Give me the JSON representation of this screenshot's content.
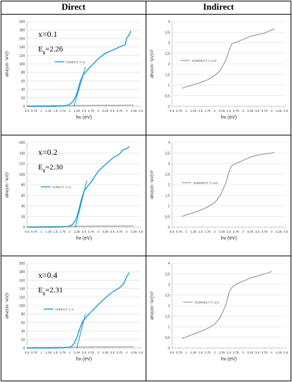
{
  "headers": {
    "left": "Direct",
    "right": "Indirect"
  },
  "rows": [
    {
      "x_label": "x=0.1",
      "eg_prefix": "E",
      "eg_sub": "g",
      "eg_value": "=2.26"
    },
    {
      "x_label": "x=0.2",
      "eg_prefix": "E",
      "eg_sub": "g",
      "eg_value": "=2.30"
    },
    {
      "x_label": "x=0.4",
      "eg_prefix": "E",
      "eg_sub": "g",
      "eg_value": "=2.31"
    }
  ],
  "colors": {
    "direct": "#1a9bd7",
    "indirect": "#a6a6a6",
    "baseline": "#7f7f7f",
    "grid": "#d9d9d9"
  },
  "chart_data": [
    {
      "type": "line",
      "panel": "direct-1",
      "xlabel": "hv (eV)",
      "ylabel": "αhv(cm⁻¹eV)²",
      "legend": "DIRECT Y=2",
      "xlim": [
        0.5,
        4.5
      ],
      "ylim": [
        0,
        200
      ],
      "x_ticks": [
        "0,5",
        "0,75",
        "1",
        "1,25",
        "1,5",
        "1,75",
        "2",
        "2,25",
        "2,5",
        "2,75",
        "3",
        "3,25",
        "3,5",
        "3,75",
        "4",
        "4,25",
        "4,5"
      ],
      "y_ticks": [
        "0",
        "20",
        "40",
        "60",
        "80",
        "100",
        "120",
        "140",
        "160",
        "180",
        "200"
      ],
      "series": [
        {
          "x": [
            0.5,
            1.0,
            1.5,
            1.8,
            1.95,
            2.05,
            2.15,
            2.25,
            2.35,
            2.45,
            2.55,
            2.75,
            3.0,
            3.25,
            3.5,
            3.75,
            3.95,
            4.0,
            4.1,
            4.15
          ],
          "y": [
            0,
            0,
            0,
            1,
            3,
            7,
            15,
            30,
            55,
            72,
            80,
            95,
            112,
            125,
            132,
            140,
            145,
            160,
            170,
            178
          ]
        }
      ],
      "fit_line": {
        "x": [
          2.15,
          2.55
        ],
        "y": [
          0,
          92
        ]
      }
    },
    {
      "type": "line",
      "panel": "indirect-1",
      "xlabel": "hv (eV)",
      "ylabel": "αhv(cm⁻¹eV)¹/²",
      "legend": "INDIRECT Y=1/2",
      "xlim": [
        0.5,
        4.5
      ],
      "ylim": [
        0,
        4
      ],
      "x_ticks": [
        "0,5",
        "0,75",
        "1",
        "1,25",
        "1,5",
        "1,75",
        "2",
        "2,25",
        "2,5",
        "2,75",
        "3",
        "3,25",
        "3,5",
        "3,75",
        "4",
        "4,25",
        "4,5"
      ],
      "y_ticks": [
        "0",
        "0,5",
        "1",
        "1,5",
        "2",
        "2,5",
        "3",
        "3,5",
        "4"
      ],
      "series": [
        {
          "x": [
            0.85,
            1.0,
            1.25,
            1.5,
            1.75,
            2.0,
            2.2,
            2.4,
            2.5,
            2.6,
            2.7,
            2.8,
            3.0,
            3.25,
            3.5,
            3.75,
            4.0,
            4.1
          ],
          "y": [
            0.85,
            0.92,
            1.02,
            1.12,
            1.25,
            1.45,
            1.7,
            2.2,
            2.6,
            2.95,
            3.0,
            3.05,
            3.15,
            3.3,
            3.38,
            3.45,
            3.6,
            3.65
          ]
        }
      ]
    },
    {
      "type": "line",
      "panel": "direct-2",
      "xlabel": "hv (eV)",
      "ylabel": "αhv(cm⁻¹eV)²",
      "legend": "DIRECT Y=2",
      "xlim": [
        0.5,
        4.5
      ],
      "ylim": [
        0,
        160
      ],
      "x_ticks": [
        "0,5",
        "0,75",
        "1",
        "1,25",
        "1,5",
        "1,75",
        "2",
        "2,25",
        "2,5",
        "2,75",
        "3",
        "3,25",
        "3,5",
        "3,75",
        "4",
        "4,25",
        "4,5"
      ],
      "y_ticks": [
        "0",
        "20",
        "40",
        "60",
        "80",
        "100",
        "120",
        "140",
        "160"
      ],
      "series": [
        {
          "x": [
            0.5,
            1.0,
            1.5,
            1.9,
            2.0,
            2.1,
            2.2,
            2.3,
            2.4,
            2.5,
            2.6,
            2.75,
            3.0,
            3.25,
            3.5,
            3.75,
            3.85,
            4.0,
            4.1
          ],
          "y": [
            0,
            0,
            0,
            1,
            2,
            5,
            12,
            28,
            50,
            68,
            75,
            85,
            105,
            118,
            130,
            138,
            145,
            148,
            152
          ]
        }
      ],
      "fit_line": {
        "x": [
          2.2,
          2.6
        ],
        "y": [
          0,
          88
        ]
      }
    },
    {
      "type": "line",
      "panel": "indirect-2",
      "xlabel": "hv (eV)",
      "ylabel": "αhv(cm⁻¹eV)¹/²",
      "legend": "INDIRECT Y=1/2",
      "xlim": [
        0.5,
        4.5
      ],
      "ylim": [
        0,
        4
      ],
      "x_ticks": [
        "0,5",
        "0,75",
        "1",
        "1,25",
        "1,5",
        "1,75",
        "2",
        "2,25",
        "2,5",
        "2,75",
        "3",
        "3,25",
        "3,5",
        "3,75",
        "4",
        "4,25",
        "4,5"
      ],
      "y_ticks": [
        "0",
        "0,5",
        "1",
        "1,5",
        "2",
        "2,5",
        "3",
        "3,5",
        "4"
      ],
      "series": [
        {
          "x": [
            0.85,
            1.0,
            1.25,
            1.5,
            1.75,
            2.0,
            2.2,
            2.4,
            2.5,
            2.6,
            2.75,
            3.0,
            3.25,
            3.5,
            3.75,
            4.0,
            4.1
          ],
          "y": [
            0.5,
            0.58,
            0.68,
            0.8,
            0.95,
            1.15,
            1.5,
            2.1,
            2.6,
            2.9,
            3.0,
            3.15,
            3.3,
            3.4,
            3.45,
            3.5,
            3.52
          ]
        }
      ]
    },
    {
      "type": "line",
      "panel": "direct-3",
      "xlabel": "hv (eV)",
      "ylabel": "αhv(cm⁻¹eV)²",
      "legend": "DIRECT Y=2",
      "xlim": [
        0.5,
        4.5
      ],
      "ylim": [
        0,
        200
      ],
      "x_ticks": [
        "0,5",
        "0,75",
        "1",
        "1,25",
        "1,5",
        "1,75",
        "2",
        "2,25",
        "2,5",
        "2,75",
        "3",
        "3,25",
        "3,5",
        "3,75",
        "4",
        "4,25",
        "4,5"
      ],
      "y_ticks": [
        "0",
        "20",
        "40",
        "60",
        "80",
        "100",
        "120",
        "140",
        "160",
        "180",
        "200"
      ],
      "series": [
        {
          "x": [
            0.5,
            1.0,
            1.5,
            1.9,
            2.05,
            2.15,
            2.25,
            2.35,
            2.45,
            2.55,
            2.65,
            2.75,
            3.0,
            3.25,
            3.5,
            3.75,
            3.9,
            4.0,
            4.1
          ],
          "y": [
            0,
            0,
            0,
            1,
            3,
            10,
            25,
            45,
            62,
            70,
            78,
            85,
            102,
            118,
            132,
            142,
            152,
            168,
            178
          ]
        }
      ],
      "fit_line": {
        "x": [
          2.25,
          2.55
        ],
        "y": [
          0,
          80
        ]
      }
    },
    {
      "type": "line",
      "panel": "indirect-3",
      "xlabel": "hv (eV)",
      "ylabel": "αhv(cm⁻¹eV)¹/²",
      "legend": "INDIRECT Y=1/2",
      "xlim": [
        0.5,
        4.5
      ],
      "ylim": [
        0,
        4
      ],
      "x_ticks": [
        "0,5",
        "0,75",
        "1",
        "1,25",
        "1,5",
        "1,75",
        "2",
        "2,25",
        "2,5",
        "2,75",
        "3",
        "3,25",
        "3,5",
        "3,75",
        "4",
        "4,25",
        "4,5"
      ],
      "y_ticks": [
        "0",
        "0,5",
        "1",
        "1,5",
        "2",
        "2,5",
        "3",
        "3,5",
        "4"
      ],
      "series": [
        {
          "x": [
            0.85,
            1.0,
            1.25,
            1.5,
            1.75,
            2.0,
            2.2,
            2.4,
            2.5,
            2.6,
            2.75,
            3.0,
            3.25,
            3.5,
            3.75,
            3.9,
            4.0
          ],
          "y": [
            0.45,
            0.52,
            0.65,
            0.78,
            0.92,
            1.12,
            1.45,
            2.05,
            2.6,
            2.85,
            3.0,
            3.15,
            3.3,
            3.4,
            3.5,
            3.55,
            3.62
          ]
        }
      ]
    }
  ]
}
